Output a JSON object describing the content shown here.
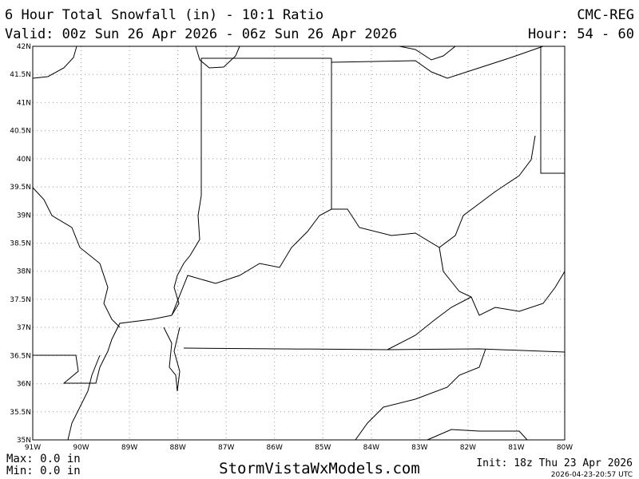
{
  "header": {
    "title": "6 Hour Total Snowfall (in) - 10:1 Ratio",
    "model": "CMC-REG",
    "valid": "Valid: 00z Sun 26 Apr 2026 - 06z Sun 26 Apr 2026",
    "hour": "Hour: 54 - 60"
  },
  "map": {
    "lon_ticks": [
      {
        "value": -91,
        "label": "91W"
      },
      {
        "value": -90,
        "label": "90W"
      },
      {
        "value": -89,
        "label": "89W"
      },
      {
        "value": -88,
        "label": "88W"
      },
      {
        "value": -87,
        "label": "87W"
      },
      {
        "value": -86,
        "label": "86W"
      },
      {
        "value": -85,
        "label": "85W"
      },
      {
        "value": -84,
        "label": "84W"
      },
      {
        "value": -83,
        "label": "83W"
      },
      {
        "value": -82,
        "label": "82W"
      },
      {
        "value": -81,
        "label": "81W"
      },
      {
        "value": -80,
        "label": "80W"
      }
    ],
    "lat_ticks": [
      {
        "value": 35,
        "label": "35N"
      },
      {
        "value": 35.5,
        "label": "35.5N"
      },
      {
        "value": 36,
        "label": "36N"
      },
      {
        "value": 36.5,
        "label": "36.5N"
      },
      {
        "value": 37,
        "label": "37N"
      },
      {
        "value": 37.5,
        "label": "37.5N"
      },
      {
        "value": 38,
        "label": "38N"
      },
      {
        "value": 38.5,
        "label": "38.5N"
      },
      {
        "value": 39,
        "label": "39N"
      },
      {
        "value": 39.5,
        "label": "39.5N"
      },
      {
        "value": 40,
        "label": "40N"
      },
      {
        "value": 40.5,
        "label": "40.5N"
      },
      {
        "value": 41,
        "label": "41N"
      },
      {
        "value": 41.5,
        "label": "41.5N"
      },
      {
        "value": 42,
        "label": "42N"
      }
    ],
    "lonlim": [
      -91,
      -80
    ],
    "latlim": [
      35,
      42
    ]
  },
  "footer": {
    "max": "Max: 0.0 in",
    "min": "Min: 0.0 in",
    "site": "StormVistaWxModels.com",
    "init": "Init: 18z Thu 23 Apr 2026",
    "stamp": "2026-04-23-20:57 UTC"
  }
}
